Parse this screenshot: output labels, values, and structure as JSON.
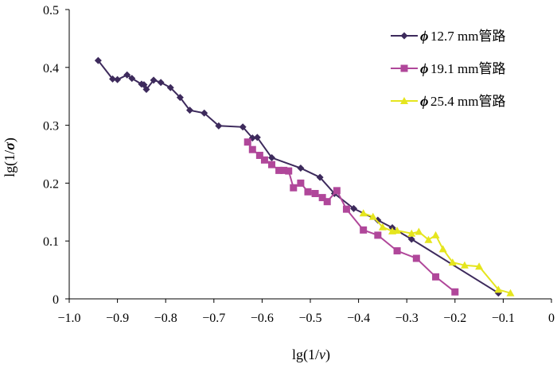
{
  "chart_data": {
    "type": "line",
    "xlabel_prefix": "lg(1/",
    "xlabel_var": "v",
    "xlabel_suffix": ")",
    "ylabel_prefix": "lg(1/",
    "ylabel_var": "σ",
    "ylabel_suffix": ")",
    "xlim": [
      -1.0,
      0
    ],
    "ylim": [
      0,
      0.5
    ],
    "xticks": [
      -1.0,
      -0.9,
      -0.8,
      -0.7,
      -0.6,
      -0.5,
      -0.4,
      -0.3,
      -0.2,
      -0.1,
      0
    ],
    "xtick_labels": [
      "−1.0",
      "−0.9",
      "−0.8",
      "−0.7",
      "−0.6",
      "−0.5",
      "−0.4",
      "−0.3",
      "−0.2",
      "−0.1",
      "0"
    ],
    "yticks": [
      0,
      0.1,
      0.2,
      0.3,
      0.4,
      0.5
    ],
    "ytick_labels": [
      "0",
      "0.1",
      "0.2",
      "0.3",
      "0.4",
      "0.5"
    ],
    "grid": false,
    "legend_position": "top-right",
    "series": [
      {
        "name_symbol": "ϕ",
        "name": "12.7 mm管路",
        "color": "#3d2a5c",
        "marker": "diamond",
        "points": [
          [
            -0.94,
            0.412
          ],
          [
            -0.91,
            0.38
          ],
          [
            -0.9,
            0.379
          ],
          [
            -0.88,
            0.387
          ],
          [
            -0.87,
            0.381
          ],
          [
            -0.85,
            0.371
          ],
          [
            -0.845,
            0.37
          ],
          [
            -0.84,
            0.362
          ],
          [
            -0.825,
            0.378
          ],
          [
            -0.81,
            0.374
          ],
          [
            -0.79,
            0.365
          ],
          [
            -0.77,
            0.348
          ],
          [
            -0.75,
            0.326
          ],
          [
            -0.72,
            0.321
          ],
          [
            -0.69,
            0.299
          ],
          [
            -0.64,
            0.297
          ],
          [
            -0.62,
            0.278
          ],
          [
            -0.61,
            0.279
          ],
          [
            -0.58,
            0.244
          ],
          [
            -0.52,
            0.226
          ],
          [
            -0.48,
            0.21
          ],
          [
            -0.45,
            0.182
          ],
          [
            -0.41,
            0.156
          ],
          [
            -0.36,
            0.136
          ],
          [
            -0.33,
            0.123
          ],
          [
            -0.29,
            0.103
          ],
          [
            -0.11,
            0.01
          ]
        ]
      },
      {
        "name_symbol": "ϕ",
        "name": "19.1 mm管路",
        "color": "#b0479a",
        "marker": "square",
        "points": [
          [
            -0.63,
            0.271
          ],
          [
            -0.62,
            0.258
          ],
          [
            -0.605,
            0.248
          ],
          [
            -0.595,
            0.24
          ],
          [
            -0.58,
            0.232
          ],
          [
            -0.565,
            0.222
          ],
          [
            -0.555,
            0.222
          ],
          [
            -0.545,
            0.221
          ],
          [
            -0.535,
            0.192
          ],
          [
            -0.52,
            0.2
          ],
          [
            -0.505,
            0.185
          ],
          [
            -0.49,
            0.182
          ],
          [
            -0.475,
            0.175
          ],
          [
            -0.465,
            0.168
          ],
          [
            -0.445,
            0.187
          ],
          [
            -0.425,
            0.155
          ],
          [
            -0.39,
            0.119
          ],
          [
            -0.36,
            0.11
          ],
          [
            -0.32,
            0.083
          ],
          [
            -0.28,
            0.07
          ],
          [
            -0.24,
            0.038
          ],
          [
            -0.2,
            0.012
          ]
        ]
      },
      {
        "name_symbol": "ϕ",
        "name": "25.4 mm管路",
        "color": "#e5e51e",
        "marker": "triangle",
        "points": [
          [
            -0.39,
            0.148
          ],
          [
            -0.37,
            0.142
          ],
          [
            -0.35,
            0.124
          ],
          [
            -0.33,
            0.117
          ],
          [
            -0.32,
            0.118
          ],
          [
            -0.29,
            0.113
          ],
          [
            -0.275,
            0.116
          ],
          [
            -0.255,
            0.102
          ],
          [
            -0.24,
            0.11
          ],
          [
            -0.225,
            0.086
          ],
          [
            -0.205,
            0.063
          ],
          [
            -0.18,
            0.058
          ],
          [
            -0.15,
            0.056
          ],
          [
            -0.11,
            0.016
          ],
          [
            -0.085,
            0.01
          ]
        ]
      }
    ]
  }
}
